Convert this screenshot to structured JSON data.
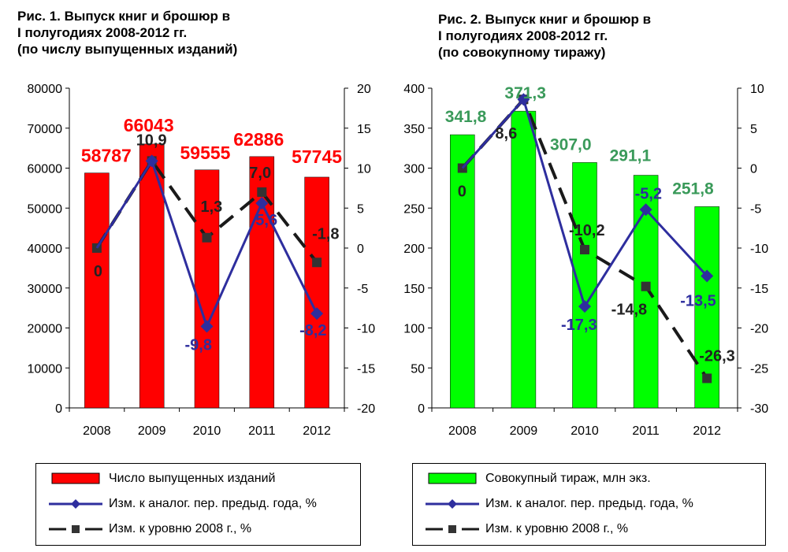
{
  "charts": [
    {
      "title_lines": [
        "Рис. 1. Выпуск книг и брошюр в",
        "I полугодиях 2008-2012 гг.",
        "(по числу выпущенных изданий)"
      ],
      "legend": [
        "Число выпущенных изданий",
        "Изм. к аналог. пер. предыд. года, %",
        "Изм. к уровню 2008 г., %"
      ]
    },
    {
      "title_lines": [
        "Рис. 2. Выпуск книг и брошюр в",
        "I полугодиях 2008-2012 гг.",
        "(по совокупному тиражу)"
      ],
      "legend": [
        "Совокупный тираж, млн экз.",
        "Изм. к аналог. пер. предыд. года, %",
        "Изм. к уровню 2008 г., %"
      ]
    }
  ],
  "chart_data": [
    {
      "type": "bar",
      "categories": [
        "2008",
        "2009",
        "2010",
        "2011",
        "2012"
      ],
      "ylim_left": [
        0,
        80000
      ],
      "ylim_right": [
        -20,
        20
      ],
      "left_ticks": [
        "0",
        "10000",
        "20000",
        "30000",
        "40000",
        "50000",
        "60000",
        "70000",
        "80000"
      ],
      "right_ticks": [
        "-20",
        "-15",
        "-10",
        "-5",
        "0",
        "5",
        "10",
        "15",
        "20"
      ],
      "bar_color": "#ff0000",
      "bar_label_color": "#ff0000",
      "series": [
        {
          "name": "Число выпущенных изданий",
          "axis": "left",
          "kind": "bar",
          "values": [
            58787,
            66043,
            59555,
            62886,
            57745
          ],
          "labels": [
            "58787",
            "66043",
            "59555",
            "62886",
            "57745"
          ]
        },
        {
          "name": "Изм. к аналог. пер. предыд. года, %",
          "axis": "right",
          "kind": "line-diamond",
          "color": "#2e2e9e",
          "values": [
            null,
            10.9,
            -9.8,
            5.6,
            -8.2
          ],
          "labels": [
            "",
            "",
            "-9,8",
            "5,6",
            "-8,2"
          ]
        },
        {
          "name": "Изм. к уровню 2008 г., %",
          "axis": "right",
          "kind": "line-dashed-square",
          "color": "#1a1a1a",
          "values": [
            0,
            10.9,
            1.3,
            7.0,
            -1.8
          ],
          "labels": [
            "0",
            "10,9",
            "1,3",
            "7,0",
            "-1,8"
          ]
        }
      ]
    },
    {
      "type": "bar",
      "categories": [
        "2008",
        "2009",
        "2010",
        "2011",
        "2012"
      ],
      "ylim_left": [
        0,
        400
      ],
      "ylim_right": [
        -30,
        10
      ],
      "left_ticks": [
        "0",
        "50",
        "100",
        "150",
        "200",
        "250",
        "300",
        "350",
        "400"
      ],
      "right_ticks": [
        "-30",
        "-25",
        "-20",
        "-15",
        "-10",
        "-5",
        "0",
        "5",
        "10"
      ],
      "bar_color": "#00ff00",
      "bar_label_color": "#3a9a5a",
      "series": [
        {
          "name": "Совокупный тираж, млн экз.",
          "axis": "left",
          "kind": "bar",
          "values": [
            341.8,
            371.3,
            307.0,
            291.1,
            251.8
          ],
          "labels": [
            "341,8",
            "371,3",
            "307,0",
            "291,1",
            "251,8"
          ]
        },
        {
          "name": "Изм. к аналог. пер. предыд. года, %",
          "axis": "right",
          "kind": "line-diamond",
          "color": "#2e2e9e",
          "values": [
            null,
            8.6,
            -17.3,
            -5.2,
            -13.5
          ],
          "labels": [
            "",
            "",
            "-17,3",
            "-5,2",
            "-13,5"
          ]
        },
        {
          "name": "Изм. к уровню 2008 г., %",
          "axis": "right",
          "kind": "line-dashed-square",
          "color": "#1a1a1a",
          "values": [
            0,
            8.6,
            -10.2,
            -14.8,
            -26.3
          ],
          "labels": [
            "0",
            "8,6",
            "-10,2",
            "-14,8",
            "-26,3"
          ]
        }
      ]
    }
  ]
}
